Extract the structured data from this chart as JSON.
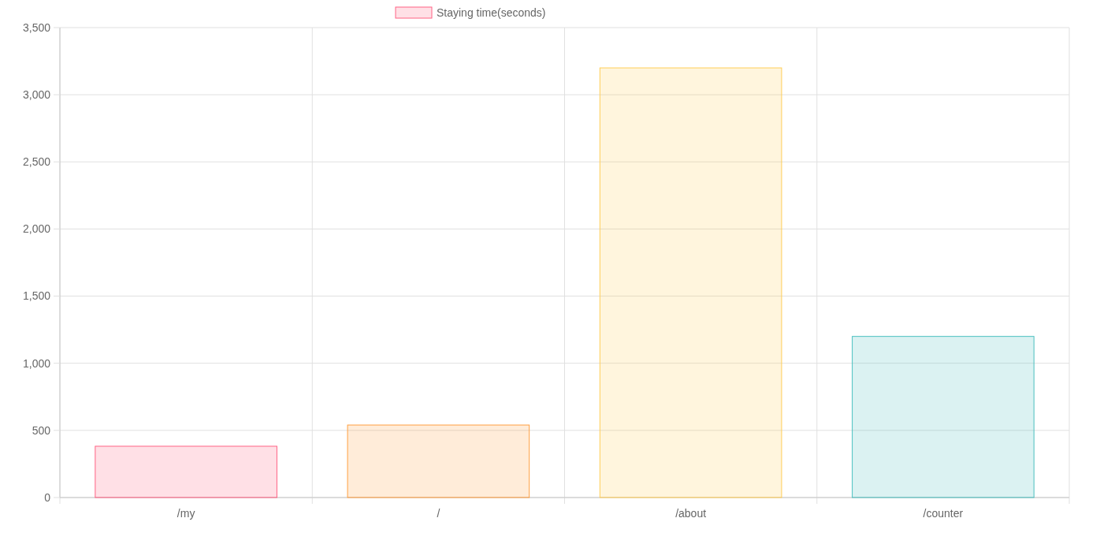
{
  "chart_data": {
    "type": "bar",
    "categories": [
      "/my",
      "/",
      "/about",
      "/counter"
    ],
    "series": [
      {
        "name": "Staying time(seconds)",
        "colors": [
          "#ff6384",
          "#ff9f40",
          "#ffcd56",
          "#4bc0c0"
        ],
        "values": [
          382,
          540,
          3200,
          1200
        ]
      }
    ],
    "ylim": [
      0,
      3500
    ],
    "yticks": [
      {
        "value": 0,
        "label": "0"
      },
      {
        "value": 500,
        "label": "500"
      },
      {
        "value": 1000,
        "label": "1,000"
      },
      {
        "value": 1500,
        "label": "1,500"
      },
      {
        "value": 2000,
        "label": "2,000"
      },
      {
        "value": 2500,
        "label": "2,500"
      },
      {
        "value": 3000,
        "label": "3,000"
      },
      {
        "value": 3500,
        "label": "3,500"
      }
    ],
    "grid": true,
    "legend": "top"
  }
}
